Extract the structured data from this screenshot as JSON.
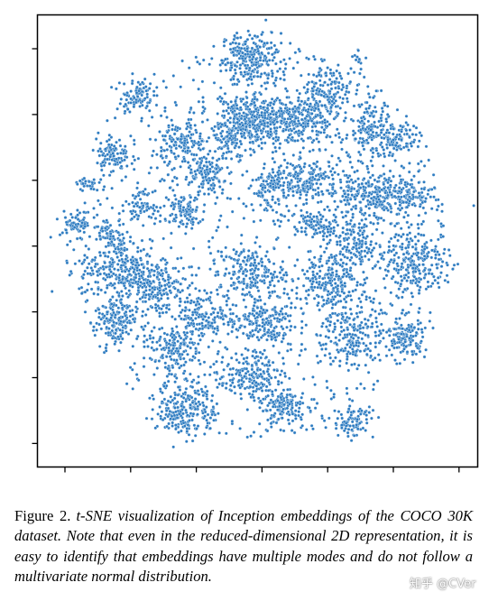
{
  "figure": {
    "caption_label": "Figure 2.",
    "caption_text": "t-SNE visualization of Inception embeddings of the COCO 30K dataset. Note that even in the reduced-dimensional 2D representation, it is easy to identify that embeddings have multiple modes and do not follow a multivariate normal distribution."
  },
  "watermark": "知乎 @CVer",
  "chart_data": {
    "type": "scatter",
    "title": "",
    "xlabel": "",
    "ylabel": "",
    "point_color": "#2e7cc1",
    "point_edge_color": "#ffffff",
    "x_tick_count": 7,
    "y_tick_count": 7,
    "grid": false,
    "legend": "none",
    "xlim": [
      -1,
      1
    ],
    "ylim": [
      -1,
      1
    ],
    "clusters": [
      {
        "x": -0.03,
        "y": 0.85,
        "spread": [
          0.07,
          0.06
        ],
        "weight": 1.1
      },
      {
        "x": -0.09,
        "y": 0.55,
        "spread": [
          0.07,
          0.06
        ],
        "weight": 1.0
      },
      {
        "x": 0.05,
        "y": 0.55,
        "spread": [
          0.07,
          0.05
        ],
        "weight": 0.9
      },
      {
        "x": 0.23,
        "y": 0.58,
        "spread": [
          0.09,
          0.06
        ],
        "weight": 1.0
      },
      {
        "x": 0.22,
        "y": 0.28,
        "spread": [
          0.09,
          0.05
        ],
        "weight": 0.9
      },
      {
        "x": 0.54,
        "y": 0.52,
        "spread": [
          0.05,
          0.06
        ],
        "weight": 0.6
      },
      {
        "x": 0.52,
        "y": 0.2,
        "spread": [
          0.09,
          0.06
        ],
        "weight": 0.9
      },
      {
        "x": 0.76,
        "y": -0.09,
        "spread": [
          0.08,
          0.07
        ],
        "weight": 1.0
      },
      {
        "x": 0.46,
        "y": -0.02,
        "spread": [
          0.06,
          0.06
        ],
        "weight": 0.6
      },
      {
        "x": 0.33,
        "y": -0.19,
        "spread": [
          0.07,
          0.06
        ],
        "weight": 0.7
      },
      {
        "x": 0.45,
        "y": -0.44,
        "spread": [
          0.07,
          0.09
        ],
        "weight": 0.9
      },
      {
        "x": 0.7,
        "y": -0.45,
        "spread": [
          0.05,
          0.05
        ],
        "weight": 0.6
      },
      {
        "x": 0.46,
        "y": -0.84,
        "spread": [
          0.05,
          0.04
        ],
        "weight": 0.4
      },
      {
        "x": 0.12,
        "y": -0.77,
        "spread": [
          0.06,
          0.04
        ],
        "weight": 0.6
      },
      {
        "x": -0.04,
        "y": -0.63,
        "spread": [
          0.07,
          0.05
        ],
        "weight": 0.7
      },
      {
        "x": -0.34,
        "y": -0.78,
        "spread": [
          0.07,
          0.07
        ],
        "weight": 1.0
      },
      {
        "x": -0.39,
        "y": -0.5,
        "spread": [
          0.07,
          0.05
        ],
        "weight": 0.7
      },
      {
        "x": -0.68,
        "y": -0.38,
        "spread": [
          0.05,
          0.06
        ],
        "weight": 0.7
      },
      {
        "x": -0.65,
        "y": -0.13,
        "spread": [
          0.1,
          0.07
        ],
        "weight": 1.2
      },
      {
        "x": -0.48,
        "y": -0.22,
        "spread": [
          0.07,
          0.06
        ],
        "weight": 0.7
      },
      {
        "x": -0.03,
        "y": -0.15,
        "spread": [
          0.08,
          0.06
        ],
        "weight": 0.8
      },
      {
        "x": 0.02,
        "y": -0.38,
        "spread": [
          0.08,
          0.06
        ],
        "weight": 0.8
      },
      {
        "x": -0.24,
        "y": -0.34,
        "spread": [
          0.07,
          0.05
        ],
        "weight": 0.6
      },
      {
        "x": -0.58,
        "y": 0.68,
        "spread": [
          0.04,
          0.04
        ],
        "weight": 0.4
      },
      {
        "x": -0.69,
        "y": 0.4,
        "spread": [
          0.04,
          0.04
        ],
        "weight": 0.4
      },
      {
        "x": -0.36,
        "y": 0.45,
        "spread": [
          0.05,
          0.06
        ],
        "weight": 0.6
      },
      {
        "x": -0.24,
        "y": 0.3,
        "spread": [
          0.05,
          0.05
        ],
        "weight": 0.5
      },
      {
        "x": -0.35,
        "y": 0.15,
        "spread": [
          0.05,
          0.04
        ],
        "weight": 0.4
      },
      {
        "x": -0.56,
        "y": 0.17,
        "spread": [
          0.03,
          0.03
        ],
        "weight": 0.25
      },
      {
        "x": -0.86,
        "y": 0.08,
        "spread": [
          0.04,
          0.03
        ],
        "weight": 0.3
      },
      {
        "x": 0.67,
        "y": 0.47,
        "spread": [
          0.05,
          0.04
        ],
        "weight": 0.4
      },
      {
        "x": 0.69,
        "y": 0.21,
        "spread": [
          0.08,
          0.05
        ],
        "weight": 0.7
      },
      {
        "x": 0.28,
        "y": 0.07,
        "spread": [
          0.05,
          0.04
        ],
        "weight": 0.4
      },
      {
        "x": 0.05,
        "y": 0.24,
        "spread": [
          0.04,
          0.04
        ],
        "weight": 0.3
      },
      {
        "x": -0.14,
        "y": 0.45,
        "spread": [
          0.03,
          0.03
        ],
        "weight": 0.2
      },
      {
        "x": -0.7,
        "y": 0.04,
        "spread": [
          0.04,
          0.03
        ],
        "weight": 0.3
      },
      {
        "x": 0.34,
        "y": 0.71,
        "spread": [
          0.06,
          0.05
        ],
        "weight": 0.5
      },
      {
        "x": 0.48,
        "y": 0.85,
        "spread": [
          0.02,
          0.02
        ],
        "weight": 0.05
      },
      {
        "x": -0.8,
        "y": 0.27,
        "spread": [
          0.03,
          0.02
        ],
        "weight": 0.12
      }
    ],
    "background_density": 0.35
  }
}
